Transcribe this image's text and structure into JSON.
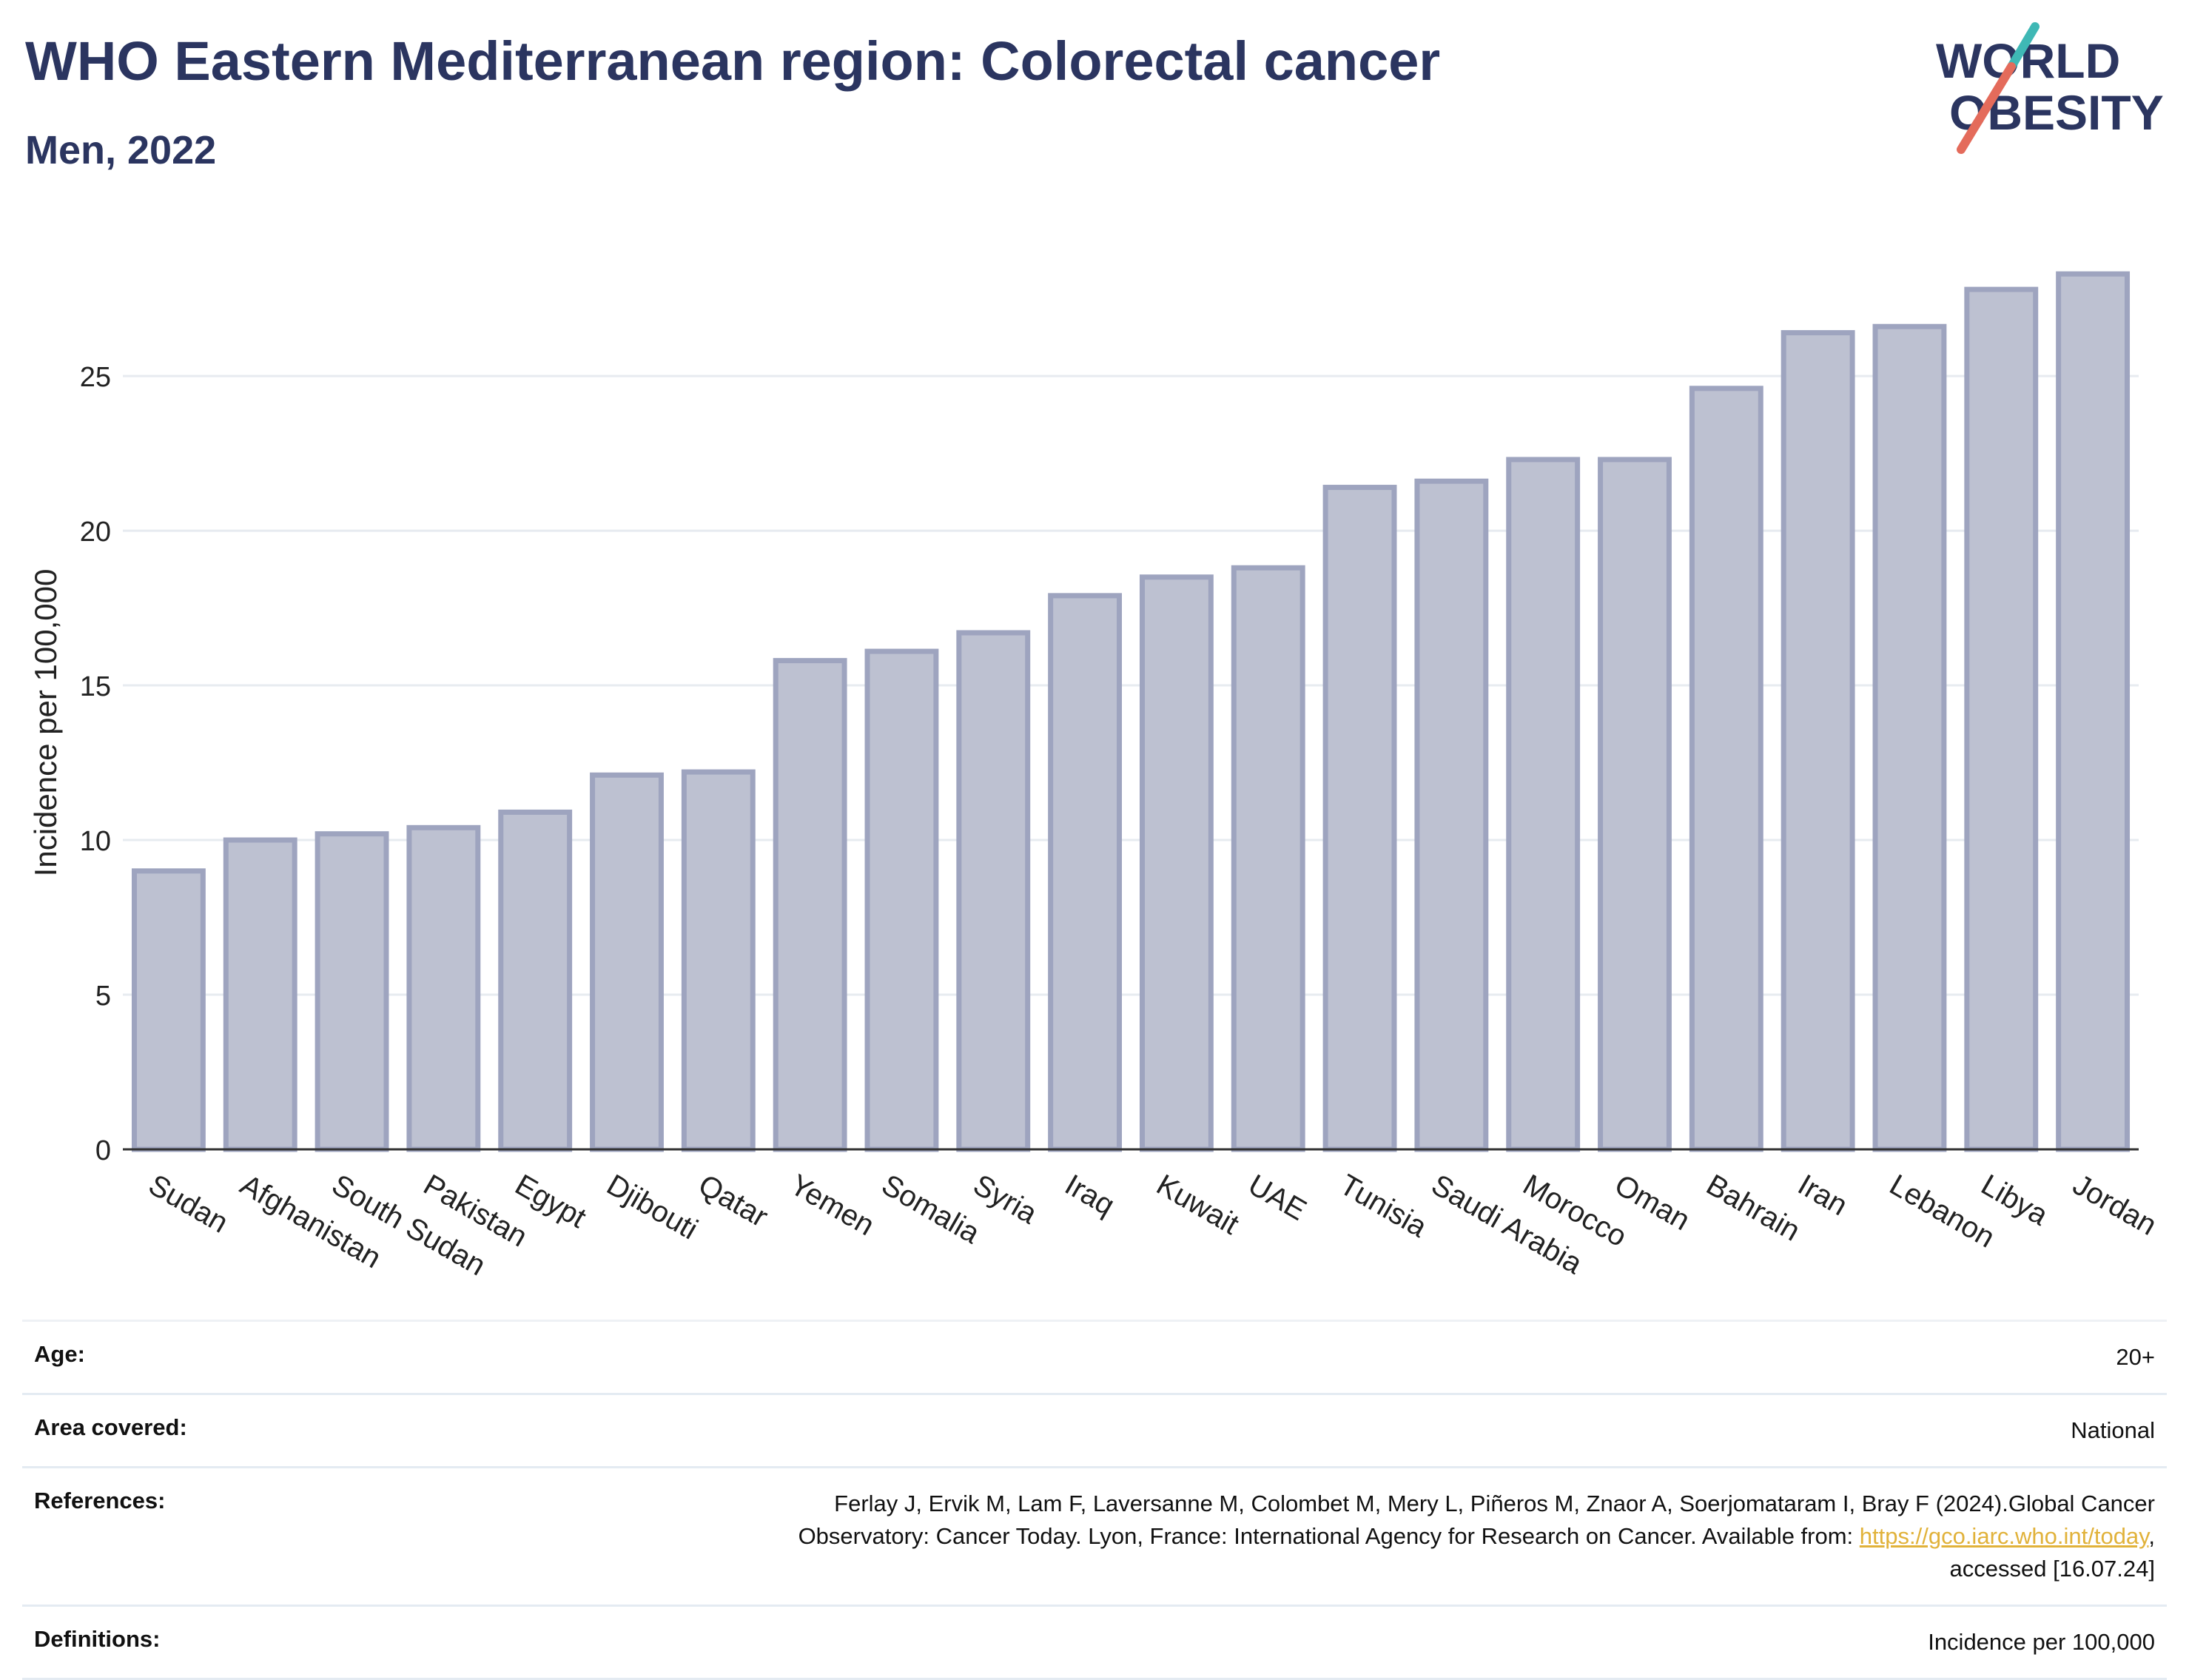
{
  "header": {
    "title": "WHO Eastern Mediterranean region: Colorectal cancer",
    "subtitle": "Men, 2022"
  },
  "logo": {
    "line1": "WORLD",
    "line2": "OBESITY",
    "accent_colors": [
      "#3fb8b5",
      "#e46b5b"
    ]
  },
  "chart_data": {
    "type": "bar",
    "ylabel": "Incidence per 100,000",
    "ylim": [
      0,
      29.5
    ],
    "yticks": [
      0,
      5,
      10,
      15,
      20,
      25
    ],
    "grid": true,
    "bar_color": "#bdc1d1",
    "bar_edge_color": "#9ea4bf",
    "categories": [
      "Sudan",
      "Afghanistan",
      "South Sudan",
      "Pakistan",
      "Egypt",
      "Djibouti",
      "Qatar",
      "Yemen",
      "Somalia",
      "Syria",
      "Iraq",
      "Kuwait",
      "UAE",
      "Tunisia",
      "Saudi Arabia",
      "Morocco",
      "Oman",
      "Bahrain",
      "Iran",
      "Lebanon",
      "Libya",
      "Jordan"
    ],
    "values": [
      9.0,
      10.0,
      10.2,
      10.4,
      10.9,
      12.1,
      12.2,
      15.8,
      16.1,
      16.7,
      17.9,
      18.5,
      18.8,
      21.4,
      21.6,
      22.3,
      22.3,
      24.6,
      26.4,
      26.6,
      27.8,
      28.3
    ]
  },
  "meta": {
    "age_label": "Age:",
    "age_value": "20+",
    "area_label": "Area covered:",
    "area_value": "National",
    "references_label": "References:",
    "references_line1": "Ferlay J, Ervik M, Lam F, Laversanne M, Colombet M, Mery L, Piñeros M, Znaor A, Soerjomataram I, Bray F (2024).Global Cancer",
    "references_line2": "Observatory: Cancer Today. Lyon, France: International Agency for Research on Cancer. Available from: ",
    "references_link": "https://gco.iarc.who.int/today",
    "references_line2_end": ",",
    "references_line3": "accessed [16.07.24]",
    "definitions_label": "Definitions:",
    "definitions_value": "Incidence per 100,000"
  }
}
